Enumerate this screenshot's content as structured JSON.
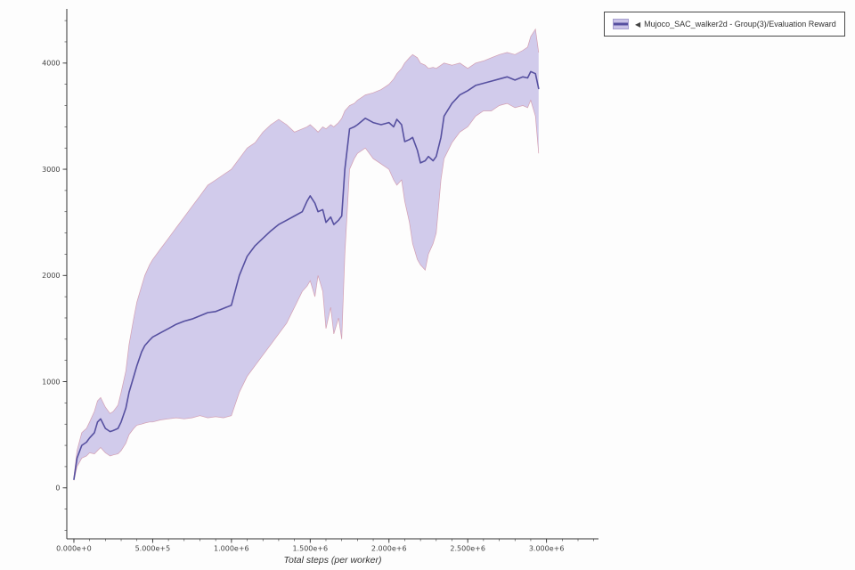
{
  "legend": {
    "collapse_icon": "◀",
    "label": "Mujoco_SAC_walker2d - Group(3)/Evaluation Reward",
    "swatch_band_color": "#c9c2e7",
    "swatch_line_color": "#5650a0"
  },
  "chart_data": {
    "type": "line",
    "title": "",
    "xlabel": "Total steps (per worker)",
    "ylabel": "",
    "grid": false,
    "legend_position": "top-right-outside",
    "colors": {
      "band": "#c9c2e7",
      "band_edge": "#d298ab",
      "line": "#5650a0",
      "axis": "#333333",
      "tick_label": "#444444"
    },
    "x_axis": {
      "range": [
        -45000,
        3330000
      ],
      "minor_step": 100000,
      "major_ticks": [
        {
          "value": 0,
          "label": "0.000e+0"
        },
        {
          "value": 500000,
          "label": "5.000e+5"
        },
        {
          "value": 1000000,
          "label": "1.000e+6"
        },
        {
          "value": 1500000,
          "label": "1.500e+6"
        },
        {
          "value": 2000000,
          "label": "2.000e+6"
        },
        {
          "value": 2500000,
          "label": "2.500e+6"
        },
        {
          "value": 3000000,
          "label": "3.000e+6"
        }
      ]
    },
    "y_axis": {
      "range": [
        -480,
        4510
      ],
      "minor_step": 200,
      "major_ticks": [
        {
          "value": 0,
          "label": "0"
        },
        {
          "value": 1000,
          "label": "1000"
        },
        {
          "value": 2000,
          "label": "2000"
        },
        {
          "value": 3000,
          "label": "3000"
        },
        {
          "value": 4000,
          "label": "4000"
        }
      ]
    },
    "series": [
      {
        "name": "Mujoco_SAC_walker2d - Group(3)/Evaluation Reward",
        "x": [
          0,
          20000,
          50000,
          80000,
          100000,
          130000,
          150000,
          170000,
          200000,
          230000,
          250000,
          280000,
          300000,
          330000,
          350000,
          380000,
          400000,
          430000,
          450000,
          480000,
          500000,
          550000,
          600000,
          650000,
          700000,
          750000,
          800000,
          850000,
          900000,
          950000,
          1000000,
          1050000,
          1100000,
          1150000,
          1200000,
          1250000,
          1300000,
          1350000,
          1400000,
          1450000,
          1480000,
          1500000,
          1530000,
          1550000,
          1580000,
          1600000,
          1630000,
          1650000,
          1680000,
          1700000,
          1720000,
          1750000,
          1780000,
          1800000,
          1850000,
          1900000,
          1950000,
          2000000,
          2030000,
          2050000,
          2080000,
          2100000,
          2130000,
          2150000,
          2180000,
          2200000,
          2230000,
          2250000,
          2280000,
          2300000,
          2330000,
          2350000,
          2400000,
          2450000,
          2500000,
          2550000,
          2600000,
          2650000,
          2700000,
          2750000,
          2800000,
          2850000,
          2880000,
          2900000,
          2930000,
          2950000
        ],
        "mean": [
          80,
          280,
          400,
          430,
          470,
          520,
          620,
          650,
          560,
          530,
          540,
          560,
          620,
          750,
          900,
          1050,
          1150,
          1280,
          1340,
          1390,
          1420,
          1460,
          1500,
          1540,
          1570,
          1590,
          1620,
          1650,
          1660,
          1690,
          1720,
          2000,
          2180,
          2280,
          2350,
          2420,
          2480,
          2520,
          2560,
          2600,
          2700,
          2750,
          2680,
          2600,
          2620,
          2500,
          2550,
          2480,
          2520,
          2560,
          3000,
          3380,
          3400,
          3420,
          3480,
          3440,
          3420,
          3440,
          3400,
          3470,
          3420,
          3260,
          3280,
          3300,
          3180,
          3060,
          3080,
          3120,
          3080,
          3120,
          3300,
          3500,
          3620,
          3700,
          3740,
          3790,
          3810,
          3830,
          3850,
          3870,
          3840,
          3870,
          3860,
          3920,
          3900,
          3760
        ],
        "lower": [
          70,
          200,
          280,
          300,
          330,
          320,
          350,
          380,
          330,
          300,
          310,
          320,
          350,
          420,
          500,
          560,
          590,
          600,
          610,
          620,
          620,
          640,
          650,
          660,
          650,
          660,
          680,
          660,
          670,
          660,
          680,
          900,
          1050,
          1150,
          1250,
          1350,
          1450,
          1550,
          1700,
          1850,
          1900,
          1950,
          1800,
          2000,
          1850,
          1500,
          1700,
          1450,
          1600,
          1400,
          2200,
          3000,
          3100,
          3150,
          3200,
          3100,
          3050,
          3000,
          2900,
          2850,
          2900,
          2700,
          2500,
          2300,
          2150,
          2100,
          2050,
          2200,
          2300,
          2400,
          2900,
          3100,
          3250,
          3350,
          3400,
          3500,
          3550,
          3550,
          3600,
          3620,
          3580,
          3600,
          3580,
          3650,
          3500,
          3150
        ],
        "upper": [
          100,
          350,
          520,
          560,
          620,
          720,
          820,
          850,
          760,
          700,
          720,
          780,
          900,
          1100,
          1350,
          1600,
          1750,
          1900,
          2000,
          2100,
          2150,
          2250,
          2350,
          2450,
          2550,
          2650,
          2750,
          2850,
          2900,
          2950,
          3000,
          3100,
          3200,
          3250,
          3350,
          3420,
          3470,
          3420,
          3350,
          3380,
          3400,
          3420,
          3380,
          3350,
          3400,
          3380,
          3420,
          3400,
          3440,
          3480,
          3550,
          3600,
          3620,
          3650,
          3700,
          3720,
          3750,
          3800,
          3850,
          3900,
          3950,
          4000,
          4050,
          4080,
          4050,
          4000,
          3980,
          3950,
          3960,
          3950,
          3980,
          4000,
          3980,
          4000,
          3950,
          4000,
          4020,
          4050,
          4080,
          4100,
          4080,
          4120,
          4150,
          4250,
          4320,
          4100
        ]
      }
    ]
  }
}
